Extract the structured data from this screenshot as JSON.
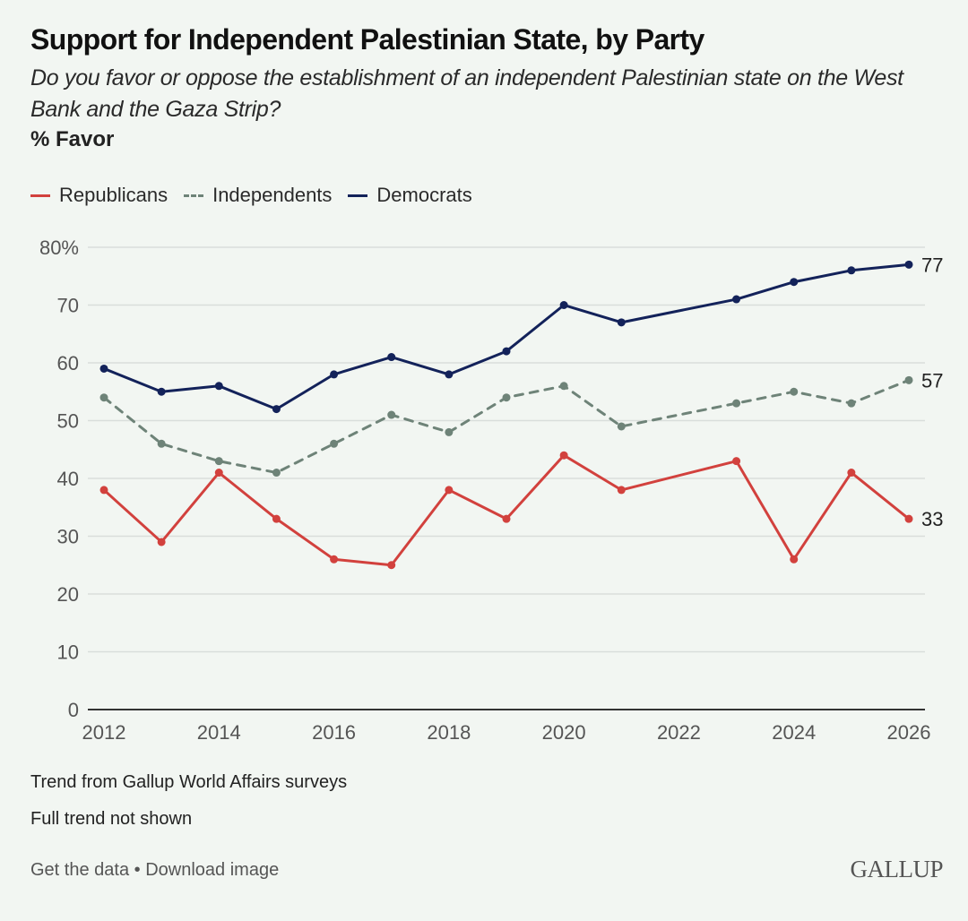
{
  "header": {
    "title": "Support for Independent Palestinian State, by Party",
    "subtitle": "Do you favor or oppose the establishment of an independent Palestinian state on the West Bank and the Gaza Strip?",
    "unit_label": "% Favor"
  },
  "legend": [
    {
      "label": "Republicans",
      "color": "#d2413d",
      "style": "solid"
    },
    {
      "label": "Independents",
      "color": "#6e8378",
      "style": "dashed"
    },
    {
      "label": "Democrats",
      "color": "#13225a",
      "style": "solid"
    }
  ],
  "chart_data": {
    "type": "line",
    "title": "Support for Independent Palestinian State, by Party",
    "xlabel": "",
    "ylabel": "% Favor",
    "xlim": [
      2012,
      2026
    ],
    "ylim": [
      0,
      80
    ],
    "x_ticks": [
      "2012",
      "2014",
      "2016",
      "2018",
      "2020",
      "2022",
      "2024",
      "2026"
    ],
    "y_ticks": [
      "0",
      "10",
      "20",
      "30",
      "40",
      "50",
      "60",
      "70",
      "80%"
    ],
    "grid": true,
    "legend_position": "top-left",
    "x": [
      2012,
      2013,
      2014,
      2015,
      2016,
      2017,
      2018,
      2019,
      2020,
      2021,
      2023,
      2024,
      2025,
      2026
    ],
    "series": [
      {
        "name": "Republicans",
        "color": "#d2413d",
        "dashed": false,
        "values": [
          38,
          29,
          41,
          33,
          26,
          25,
          38,
          33,
          44,
          38,
          43,
          26,
          41,
          33
        ],
        "end_label": "33"
      },
      {
        "name": "Independents",
        "color": "#6e8378",
        "dashed": true,
        "values": [
          54,
          46,
          43,
          41,
          46,
          51,
          48,
          54,
          56,
          49,
          53,
          55,
          53,
          57
        ],
        "end_label": "57"
      },
      {
        "name": "Democrats",
        "color": "#13225a",
        "dashed": false,
        "values": [
          59,
          55,
          56,
          52,
          58,
          61,
          58,
          62,
          70,
          67,
          71,
          74,
          76,
          77
        ],
        "end_label": "77"
      }
    ]
  },
  "footnotes": [
    "Trend from Gallup World Affairs surveys",
    "Full trend not shown"
  ],
  "footer": {
    "get_data": "Get the data",
    "separator": "•",
    "download": "Download image",
    "logo": "GALLUP"
  }
}
